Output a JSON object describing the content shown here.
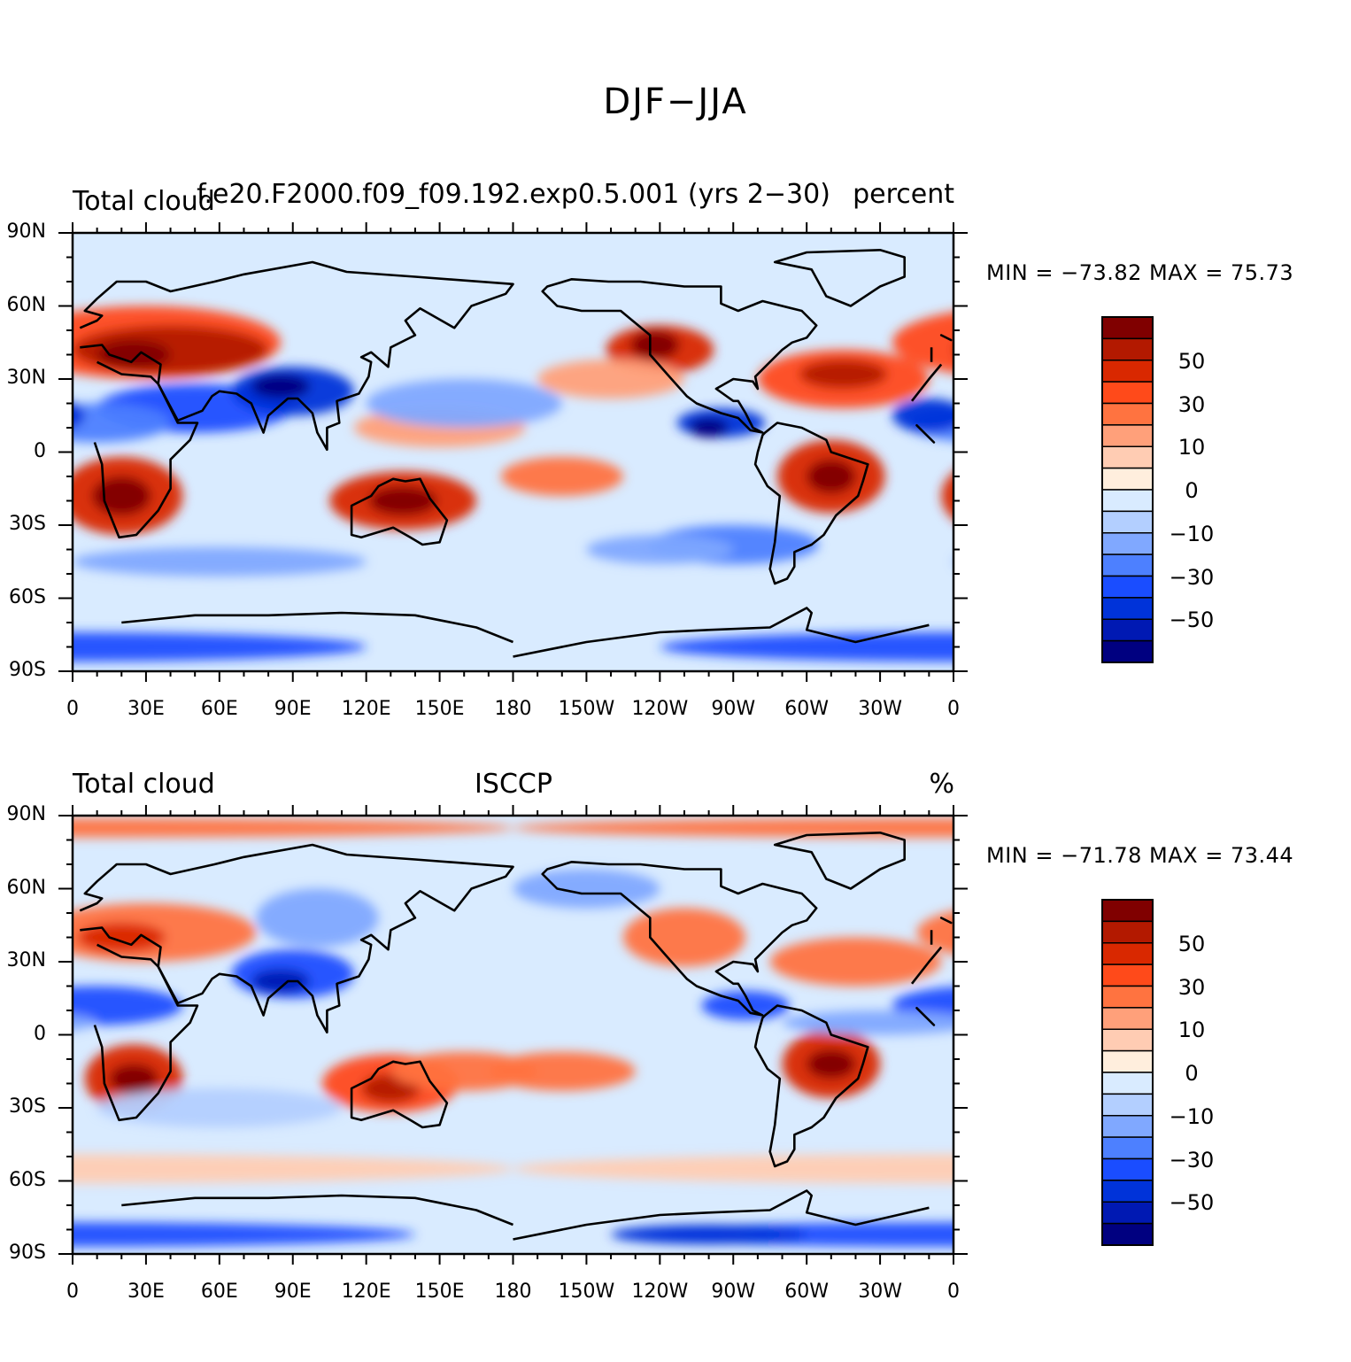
{
  "title": "DJF−JJA",
  "panels": [
    {
      "left_title": "Total cloud",
      "center_title": "f.e20.F2000.f09_f09.192.exp0.5.001 (yrs 2−30)",
      "right_title": "percent",
      "min_max": "MIN = −73.82 MAX =   75.73"
    },
    {
      "left_title": "Total cloud",
      "center_title": "ISCCP",
      "right_title": "%",
      "min_max": "MIN = −71.78 MAX =   73.44"
    }
  ],
  "lat_labels": [
    "90N",
    "60N",
    "30N",
    "0",
    "30S",
    "60S",
    "90S"
  ],
  "lon_labels": [
    "0",
    "30E",
    "60E",
    "90E",
    "120E",
    "150E",
    "180",
    "150W",
    "120W",
    "90W",
    "60W",
    "30W",
    "0"
  ],
  "colorbar": {
    "labels": [
      "50",
      "30",
      "10",
      "0",
      "−10",
      "−30",
      "−50"
    ],
    "colors": [
      "#800000",
      "#b31900",
      "#d92800",
      "#ff4a1a",
      "#ff7340",
      "#ffa07a",
      "#ffccb3",
      "#ffeedd",
      "#d9ebff",
      "#b3cfff",
      "#80a8ff",
      "#4d80ff",
      "#1a4dff",
      "#0033d9",
      "#0019b3",
      "#000080"
    ]
  },
  "map_data": {
    "projection": "cylindrical equidistant",
    "variable": "Total cloud",
    "season_difference": "DJF−JJA"
  }
}
